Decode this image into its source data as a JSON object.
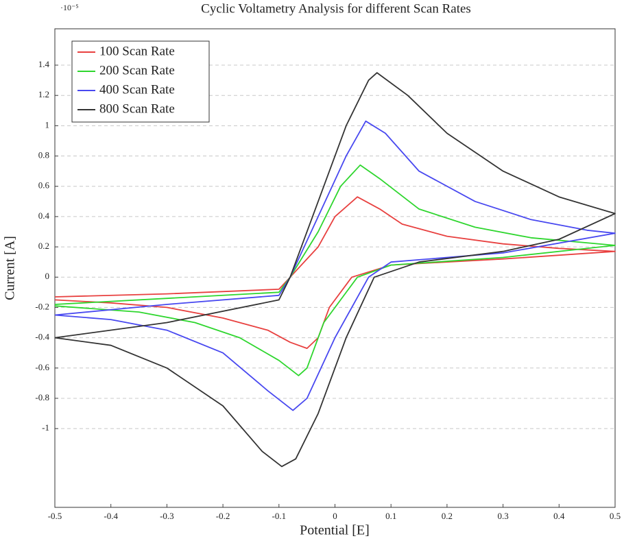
{
  "chart_data": {
    "type": "line",
    "title": "Cyclic Voltametry Analysis for different Scan Rates",
    "y_axis_exponent": "·10⁻⁵",
    "x_label": "Potential [E]",
    "y_label": "Current [A]",
    "xlim": [
      -0.5,
      0.5
    ],
    "ylim": [
      -1.52,
      1.64
    ],
    "xticks": [
      -0.5,
      -0.4,
      -0.3,
      -0.2,
      -0.1,
      0,
      0.1,
      0.2,
      0.3,
      0.4,
      0.5
    ],
    "yticks": [
      -1,
      -0.8,
      -0.6,
      -0.4,
      -0.2,
      0,
      0.2,
      0.4,
      0.6,
      0.8,
      1,
      1.2,
      1.4
    ],
    "grid": true,
    "legend": "upper-left",
    "series": [
      {
        "name": "100 Scan Rate",
        "color": "#e8403f",
        "x": [
          -0.5,
          -0.3,
          -0.1,
          -0.08,
          -0.03,
          0.0,
          0.04,
          0.08,
          0.12,
          0.2,
          0.3,
          0.4,
          0.5,
          0.3,
          0.1,
          0.03,
          -0.01,
          -0.03,
          -0.05,
          -0.08,
          -0.12,
          -0.2,
          -0.3,
          -0.4,
          -0.5
        ],
        "values": [
          -0.13,
          -0.11,
          -0.08,
          0,
          0.2,
          0.4,
          0.53,
          0.45,
          0.35,
          0.27,
          0.22,
          0.19,
          0.17,
          0.12,
          0.08,
          0,
          -0.2,
          -0.4,
          -0.47,
          -0.43,
          -0.35,
          -0.27,
          -0.2,
          -0.17,
          -0.15
        ]
      },
      {
        "name": "200 Scan Rate",
        "color": "#2ed62e",
        "x": [
          -0.5,
          -0.3,
          -0.1,
          -0.08,
          -0.03,
          0.01,
          0.045,
          0.08,
          0.15,
          0.25,
          0.35,
          0.5,
          0.3,
          0.1,
          0.04,
          -0.02,
          -0.05,
          -0.065,
          -0.1,
          -0.17,
          -0.25,
          -0.35,
          -0.5
        ],
        "values": [
          -0.18,
          -0.14,
          -0.1,
          0,
          0.3,
          0.6,
          0.74,
          0.65,
          0.45,
          0.33,
          0.26,
          0.21,
          0.13,
          0.08,
          0,
          -0.3,
          -0.6,
          -0.65,
          -0.55,
          -0.4,
          -0.3,
          -0.23,
          -0.19
        ]
      },
      {
        "name": "400 Scan Rate",
        "color": "#4848f0",
        "x": [
          -0.5,
          -0.3,
          -0.1,
          -0.08,
          -0.03,
          0.02,
          0.055,
          0.09,
          0.15,
          0.25,
          0.35,
          0.45,
          0.5,
          0.3,
          0.1,
          0.06,
          0.0,
          -0.05,
          -0.075,
          -0.12,
          -0.2,
          -0.3,
          -0.4,
          -0.5
        ],
        "values": [
          -0.25,
          -0.18,
          -0.12,
          0,
          0.4,
          0.8,
          1.03,
          0.95,
          0.7,
          0.5,
          0.38,
          0.31,
          0.29,
          0.16,
          0.1,
          0,
          -0.4,
          -0.8,
          -0.88,
          -0.75,
          -0.5,
          -0.35,
          -0.28,
          -0.25
        ]
      },
      {
        "name": "800 Scan Rate",
        "color": "#333333",
        "x": [
          -0.5,
          -0.3,
          -0.1,
          -0.08,
          -0.03,
          0.02,
          0.06,
          0.075,
          0.13,
          0.2,
          0.3,
          0.4,
          0.5,
          0.4,
          0.3,
          0.15,
          0.07,
          0.02,
          -0.03,
          -0.07,
          -0.095,
          -0.13,
          -0.2,
          -0.3,
          -0.4,
          -0.5
        ],
        "values": [
          -0.4,
          -0.3,
          -0.15,
          0,
          0.5,
          1.0,
          1.3,
          1.35,
          1.2,
          0.95,
          0.7,
          0.53,
          0.42,
          0.25,
          0.17,
          0.1,
          0,
          -0.4,
          -0.9,
          -1.2,
          -1.25,
          -1.15,
          -0.85,
          -0.6,
          -0.45,
          -0.4
        ]
      }
    ]
  }
}
